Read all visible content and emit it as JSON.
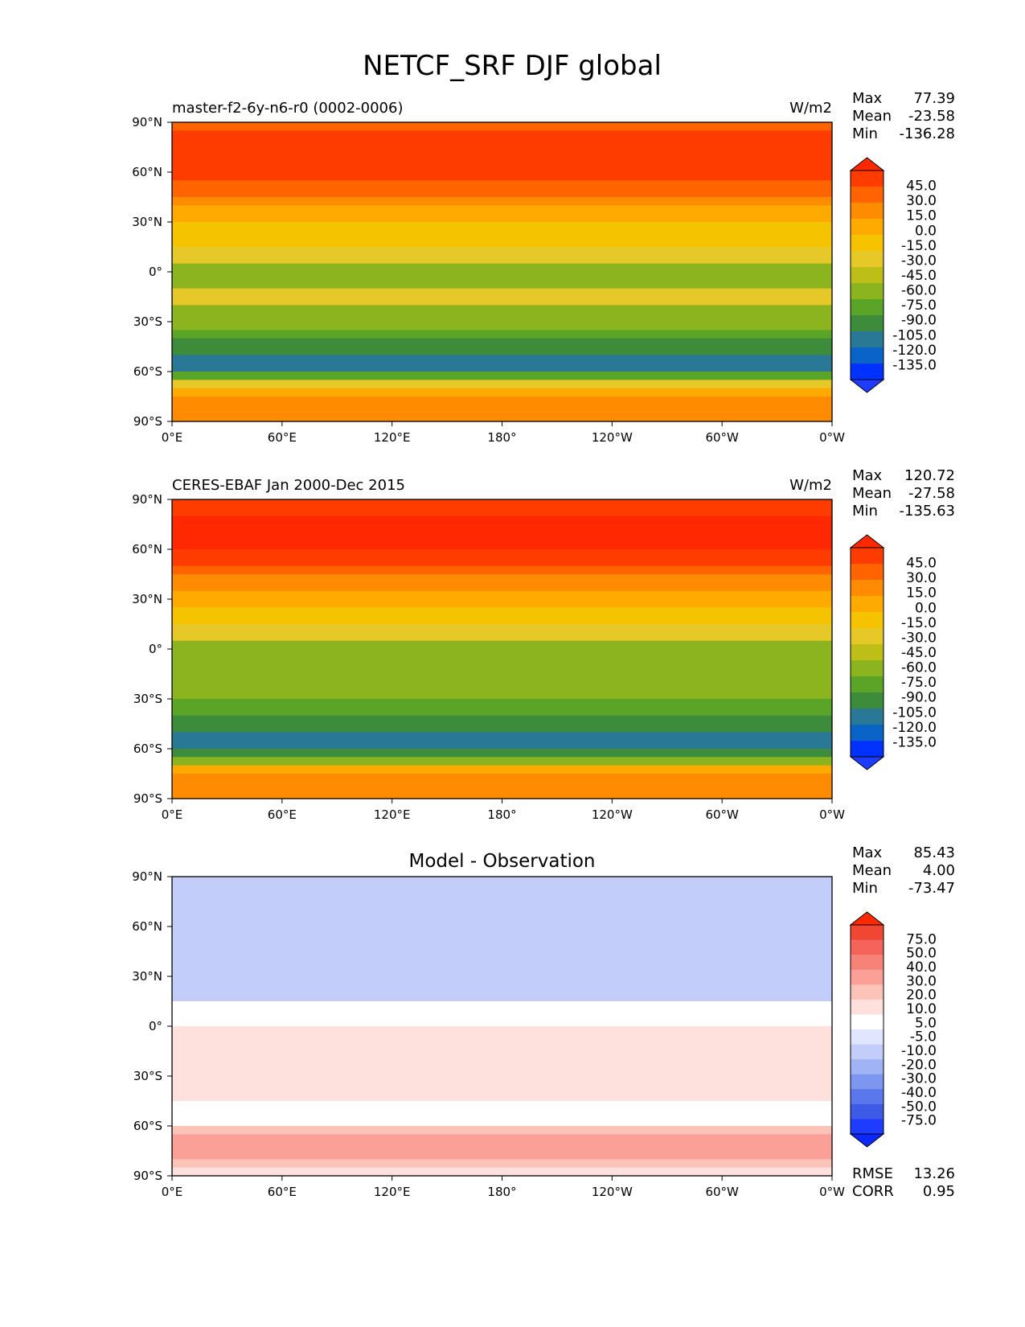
{
  "title": "NETCF_SRF DJF global",
  "panels": [
    {
      "left_title": "master-f2-6y-n6-r0 (0002-0006)",
      "center_title": "",
      "units": "W/m2",
      "stats": [
        {
          "label": "Max",
          "value": "77.39"
        },
        {
          "label": "Mean",
          "value": "-23.58"
        },
        {
          "label": "Min",
          "value": "-136.28"
        }
      ],
      "colorbar": {
        "labels": [
          "45.0",
          "30.0",
          "15.0",
          "0.0",
          "-15.0",
          "-30.0",
          "-45.0",
          "-60.0",
          "-75.0",
          "-90.0",
          "-105.0",
          "-120.0",
          "-135.0"
        ],
        "colors": [
          "#ff2800",
          "#ff3c00",
          "#ff6400",
          "#ff8c00",
          "#ffaa00",
          "#f5c300",
          "#e6c828",
          "#bebe19",
          "#8cb41e",
          "#5aa528",
          "#3c8c3c",
          "#287896",
          "#0a64c8",
          "#0032ff",
          "#1e3cff"
        ]
      }
    },
    {
      "left_title": "CERES-EBAF Jan 2000-Dec 2015",
      "center_title": "",
      "units": "W/m2",
      "stats": [
        {
          "label": "Max",
          "value": "120.72"
        },
        {
          "label": "Mean",
          "value": "-27.58"
        },
        {
          "label": "Min",
          "value": "-135.63"
        }
      ],
      "colorbar": {
        "labels": [
          "45.0",
          "30.0",
          "15.0",
          "0.0",
          "-15.0",
          "-30.0",
          "-45.0",
          "-60.0",
          "-75.0",
          "-90.0",
          "-105.0",
          "-120.0",
          "-135.0"
        ],
        "colors": [
          "#ff2800",
          "#ff3c00",
          "#ff6400",
          "#ff8c00",
          "#ffaa00",
          "#f5c300",
          "#e6c828",
          "#bebe19",
          "#8cb41e",
          "#5aa528",
          "#3c8c3c",
          "#287896",
          "#0a64c8",
          "#0032ff",
          "#1e3cff"
        ]
      }
    },
    {
      "left_title": "",
      "center_title": "Model - Observation",
      "units": "",
      "stats": [
        {
          "label": "Max",
          "value": "85.43"
        },
        {
          "label": "Mean",
          "value": "4.00"
        },
        {
          "label": "Min",
          "value": "-73.47"
        }
      ],
      "extra_stats": [
        {
          "label": "RMSE",
          "value": "13.26"
        },
        {
          "label": "CORR",
          "value": "0.95"
        }
      ],
      "colorbar": {
        "labels": [
          "75.0",
          "50.0",
          "40.0",
          "30.0",
          "20.0",
          "10.0",
          "5.0",
          "-5.0",
          "-10.0",
          "-20.0",
          "-30.0",
          "-40.0",
          "-50.0",
          "-75.0"
        ],
        "colors": [
          "#ff2800",
          "#f04632",
          "#f5645a",
          "#f78278",
          "#faa096",
          "#fcc3b9",
          "#fee1dc",
          "#ffffff",
          "#e1e6ff",
          "#c3cdfa",
          "#a0b4f5",
          "#7d96f0",
          "#5a78eb",
          "#3c5ae6",
          "#1e3cff",
          "#0a28ff"
        ]
      }
    }
  ],
  "axes": {
    "x_ticks": [
      "0°E",
      "60°E",
      "120°E",
      "180°",
      "120°W",
      "60°W",
      "0°W"
    ],
    "y_ticks": [
      "90°N",
      "60°N",
      "30°N",
      "0°",
      "30°S",
      "60°S",
      "90°S"
    ],
    "lon_range": [
      0,
      360
    ],
    "lat_range": [
      -90,
      90
    ]
  },
  "chart_data": {
    "type": "heatmap",
    "title": "NETCF_SRF DJF global",
    "subplots": [
      {
        "name": "master-f2-6y-n6-r0 (0002-0006)",
        "units": "W/m2",
        "max": 77.39,
        "mean": -23.58,
        "min": -136.28,
        "levels": [
          -135,
          -120,
          -105,
          -90,
          -75,
          -60,
          -45,
          -30,
          -15,
          0,
          15,
          30,
          45
        ],
        "zonal_profile": {
          "lat": [
            90,
            75,
            60,
            45,
            30,
            15,
            0,
            -15,
            -30,
            -45,
            -55,
            -65,
            -75,
            -90
          ],
          "value": [
            20,
            45,
            40,
            15,
            -15,
            -30,
            -50,
            -40,
            -50,
            -80,
            -100,
            -60,
            10,
            5
          ]
        }
      },
      {
        "name": "CERES-EBAF Jan 2000-Dec 2015",
        "units": "W/m2",
        "max": 120.72,
        "mean": -27.58,
        "min": -135.63,
        "levels": [
          -135,
          -120,
          -105,
          -90,
          -75,
          -60,
          -45,
          -30,
          -15,
          0,
          15,
          30,
          45
        ],
        "zonal_profile": {
          "lat": [
            90,
            75,
            60,
            45,
            30,
            15,
            0,
            -15,
            -30,
            -45,
            -55,
            -65,
            -75,
            -90
          ],
          "value": [
            30,
            50,
            45,
            20,
            -10,
            -25,
            -55,
            -50,
            -60,
            -85,
            -95,
            -75,
            10,
            5
          ]
        }
      },
      {
        "name": "Model - Observation",
        "max": 85.43,
        "mean": 4.0,
        "min": -73.47,
        "rmse": 13.26,
        "corr": 0.95,
        "levels": [
          -75,
          -50,
          -40,
          -30,
          -20,
          -10,
          -5,
          5,
          10,
          20,
          30,
          40,
          50,
          75
        ],
        "zonal_profile": {
          "lat": [
            90,
            75,
            60,
            45,
            30,
            15,
            0,
            -15,
            -30,
            -45,
            -55,
            -65,
            -75,
            -90
          ],
          "value": [
            -10,
            -5,
            -5,
            -5,
            -5,
            -5,
            5,
            10,
            10,
            5,
            -5,
            20,
            25,
            5
          ]
        }
      }
    ]
  }
}
